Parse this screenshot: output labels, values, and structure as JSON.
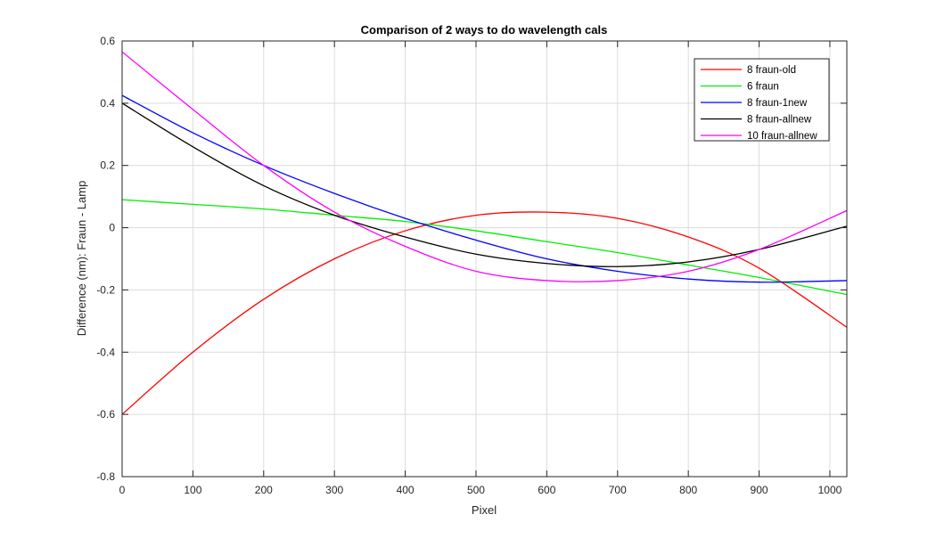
{
  "chart_data": {
    "type": "line",
    "title": "Comparison of 2 ways to do wavelength cals",
    "xlabel": "Pixel",
    "ylabel": "Difference (nm): Fraun - Lamp",
    "xlim": [
      0,
      1024
    ],
    "ylim": [
      -0.8,
      0.6
    ],
    "xticks": [
      0,
      100,
      200,
      300,
      400,
      500,
      600,
      700,
      800,
      900,
      1000
    ],
    "yticks": [
      -0.8,
      -0.6,
      -0.4,
      -0.2,
      0,
      0.2,
      0.4,
      0.6
    ],
    "xtick_labels": [
      "0",
      "100",
      "200",
      "300",
      "400",
      "500",
      "600",
      "700",
      "800",
      "900",
      "1000"
    ],
    "ytick_labels": [
      "-0.8",
      "-0.6",
      "-0.4",
      "-0.2",
      "0",
      "0.2",
      "0.4",
      "0.6"
    ],
    "grid": true,
    "legend_position": "top-right",
    "x": [
      0,
      100,
      200,
      300,
      400,
      500,
      600,
      700,
      800,
      900,
      1024
    ],
    "series": [
      {
        "name": "8 fraun-old",
        "color": "#ff0000",
        "values": [
          -0.6,
          -0.4,
          -0.23,
          -0.1,
          -0.01,
          0.04,
          0.05,
          0.03,
          -0.03,
          -0.13,
          -0.32
        ]
      },
      {
        "name": "6 fraun",
        "color": "#00ee00",
        "values": [
          0.09,
          0.075,
          0.06,
          0.04,
          0.02,
          -0.01,
          -0.045,
          -0.08,
          -0.12,
          -0.16,
          -0.215
        ]
      },
      {
        "name": "8 fraun-1new",
        "color": "#0000ff",
        "values": [
          0.425,
          0.305,
          0.2,
          0.11,
          0.03,
          -0.04,
          -0.1,
          -0.14,
          -0.165,
          -0.175,
          -0.17
        ]
      },
      {
        "name": "8 fraun-allnew",
        "color": "#000000",
        "values": [
          0.4,
          0.26,
          0.135,
          0.04,
          -0.03,
          -0.085,
          -0.115,
          -0.125,
          -0.11,
          -0.07,
          0.005
        ]
      },
      {
        "name": "10 fraun-allnew",
        "color": "#ff00ff",
        "values": [
          0.565,
          0.38,
          0.2,
          0.05,
          -0.06,
          -0.14,
          -0.17,
          -0.17,
          -0.14,
          -0.07,
          0.055
        ]
      }
    ]
  }
}
